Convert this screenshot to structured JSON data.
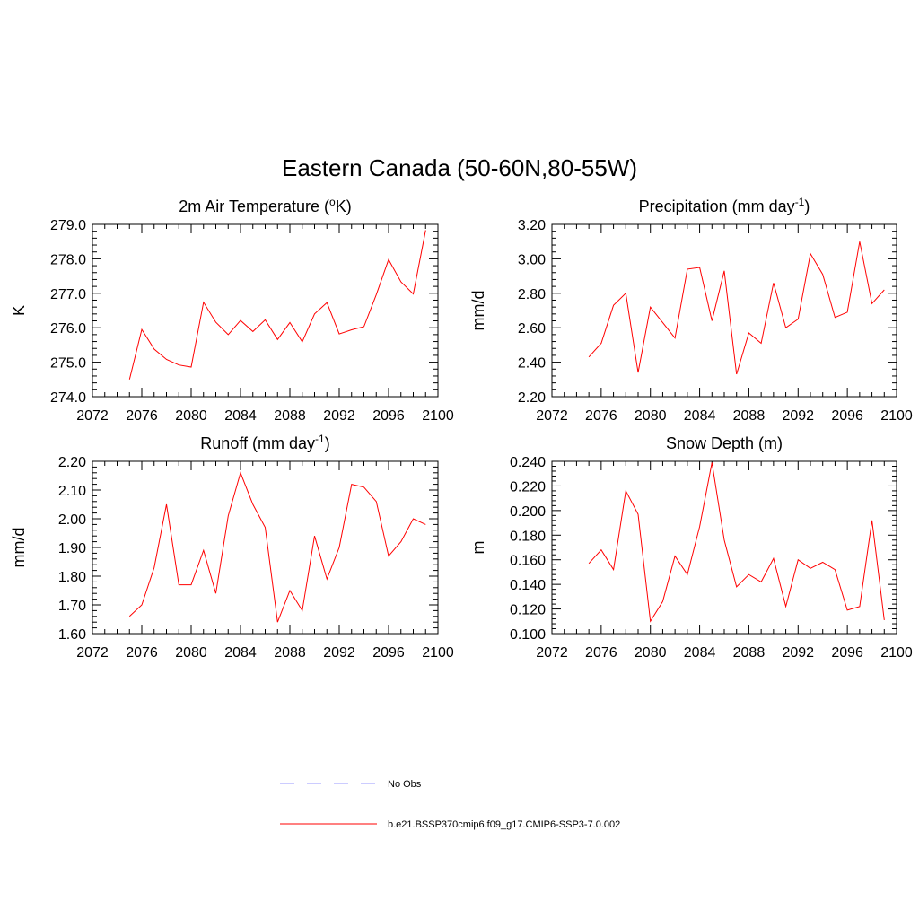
{
  "figure": {
    "title": "Eastern Canada (50-60N,80-55W)"
  },
  "legend": [
    {
      "label": "No Obs",
      "color": "#9999ff",
      "dash": true
    },
    {
      "label": "b.e21.BSSP370cmip6.f09_g17.CMIP6-SSP3-7.0.002",
      "color": "#ff0000",
      "dash": false
    }
  ],
  "chart_data": [
    {
      "type": "line",
      "title": "2m Air Temperature (oK)",
      "title_parts": {
        "before": "2m Air Temperature (",
        "sup": "o",
        "after": "K)"
      },
      "ylabel": "K",
      "xlim": [
        2072,
        2100
      ],
      "ylim": [
        274.0,
        279.0
      ],
      "xticks": [
        2072,
        2076,
        2080,
        2084,
        2088,
        2092,
        2096,
        2100
      ],
      "yticks": [
        274.0,
        275.0,
        276.0,
        277.0,
        278.0,
        279.0
      ],
      "ytick_labels": [
        "274.0",
        "275.0",
        "276.0",
        "277.0",
        "278.0",
        "279.0"
      ],
      "x": [
        2075,
        2076,
        2077,
        2078,
        2079,
        2080,
        2081,
        2082,
        2083,
        2084,
        2085,
        2086,
        2087,
        2088,
        2089,
        2090,
        2091,
        2092,
        2093,
        2094,
        2095,
        2096,
        2097,
        2098,
        2099
      ],
      "series": [
        {
          "color": "#ff0000",
          "values": [
            274.5,
            275.95,
            275.38,
            275.08,
            274.92,
            274.86,
            276.74,
            276.16,
            275.8,
            276.21,
            275.89,
            276.23,
            275.66,
            276.15,
            275.59,
            276.4,
            276.73,
            275.82,
            275.94,
            276.03,
            276.96,
            277.98,
            277.33,
            276.98,
            278.83
          ]
        }
      ]
    },
    {
      "type": "line",
      "title": "Precipitation (mm day-1)",
      "title_parts": {
        "before": "Precipitation (mm day",
        "sup": "-1",
        "after": ")"
      },
      "ylabel": "mm/d",
      "xlim": [
        2072,
        2100
      ],
      "ylim": [
        2.2,
        3.2
      ],
      "xticks": [
        2072,
        2076,
        2080,
        2084,
        2088,
        2092,
        2096,
        2100
      ],
      "yticks": [
        2.2,
        2.4,
        2.6,
        2.8,
        3.0,
        3.2
      ],
      "ytick_labels": [
        "2.20",
        "2.40",
        "2.60",
        "2.80",
        "3.00",
        "3.20"
      ],
      "x": [
        2075,
        2076,
        2077,
        2078,
        2079,
        2080,
        2081,
        2082,
        2083,
        2084,
        2085,
        2086,
        2087,
        2088,
        2089,
        2090,
        2091,
        2092,
        2093,
        2094,
        2095,
        2096,
        2097,
        2098,
        2099
      ],
      "series": [
        {
          "color": "#ff0000",
          "values": [
            2.43,
            2.51,
            2.73,
            2.8,
            2.34,
            2.72,
            2.63,
            2.54,
            2.94,
            2.95,
            2.64,
            2.93,
            2.33,
            2.57,
            2.51,
            2.86,
            2.6,
            2.65,
            3.03,
            2.91,
            2.66,
            2.69,
            3.1,
            2.74,
            2.82
          ]
        }
      ]
    },
    {
      "type": "line",
      "title": "Runoff (mm day-1)",
      "title_parts": {
        "before": "Runoff (mm day",
        "sup": "-1",
        "after": ")"
      },
      "ylabel": "mm/d",
      "xlim": [
        2072,
        2100
      ],
      "ylim": [
        1.6,
        2.2
      ],
      "xticks": [
        2072,
        2076,
        2080,
        2084,
        2088,
        2092,
        2096,
        2100
      ],
      "yticks": [
        1.6,
        1.7,
        1.8,
        1.9,
        2.0,
        2.1,
        2.2
      ],
      "ytick_labels": [
        "1.60",
        "1.70",
        "1.80",
        "1.90",
        "2.00",
        "2.10",
        "2.20"
      ],
      "x": [
        2075,
        2076,
        2077,
        2078,
        2079,
        2080,
        2081,
        2082,
        2083,
        2084,
        2085,
        2086,
        2087,
        2088,
        2089,
        2090,
        2091,
        2092,
        2093,
        2094,
        2095,
        2096,
        2097,
        2098,
        2099
      ],
      "series": [
        {
          "color": "#ff0000",
          "values": [
            1.66,
            1.7,
            1.83,
            2.05,
            1.77,
            1.77,
            1.89,
            1.74,
            2.01,
            2.16,
            2.05,
            1.97,
            1.64,
            1.75,
            1.68,
            1.94,
            1.79,
            1.9,
            2.12,
            2.11,
            2.06,
            1.87,
            1.92,
            2.0,
            1.98
          ]
        }
      ]
    },
    {
      "type": "line",
      "title": "Snow Depth (m)",
      "title_parts": {
        "before": "Snow Depth (m)",
        "sup": "",
        "after": ""
      },
      "ylabel": "m",
      "xlim": [
        2072,
        2100
      ],
      "ylim": [
        0.1,
        0.24
      ],
      "xticks": [
        2072,
        2076,
        2080,
        2084,
        2088,
        2092,
        2096,
        2100
      ],
      "yticks": [
        0.1,
        0.12,
        0.14,
        0.16,
        0.18,
        0.2,
        0.22,
        0.24
      ],
      "ytick_labels": [
        "0.100",
        "0.120",
        "0.140",
        "0.160",
        "0.180",
        "0.200",
        "0.220",
        "0.240"
      ],
      "x": [
        2075,
        2076,
        2077,
        2078,
        2079,
        2080,
        2081,
        2082,
        2083,
        2084,
        2085,
        2086,
        2087,
        2088,
        2089,
        2090,
        2091,
        2092,
        2093,
        2094,
        2095,
        2096,
        2097,
        2098,
        2099
      ],
      "series": [
        {
          "color": "#ff0000",
          "values": [
            0.157,
            0.168,
            0.152,
            0.216,
            0.197,
            0.11,
            0.126,
            0.163,
            0.148,
            0.187,
            0.239,
            0.176,
            0.138,
            0.148,
            0.142,
            0.161,
            0.122,
            0.16,
            0.153,
            0.158,
            0.152,
            0.119,
            0.122,
            0.192,
            0.111
          ]
        }
      ]
    }
  ]
}
